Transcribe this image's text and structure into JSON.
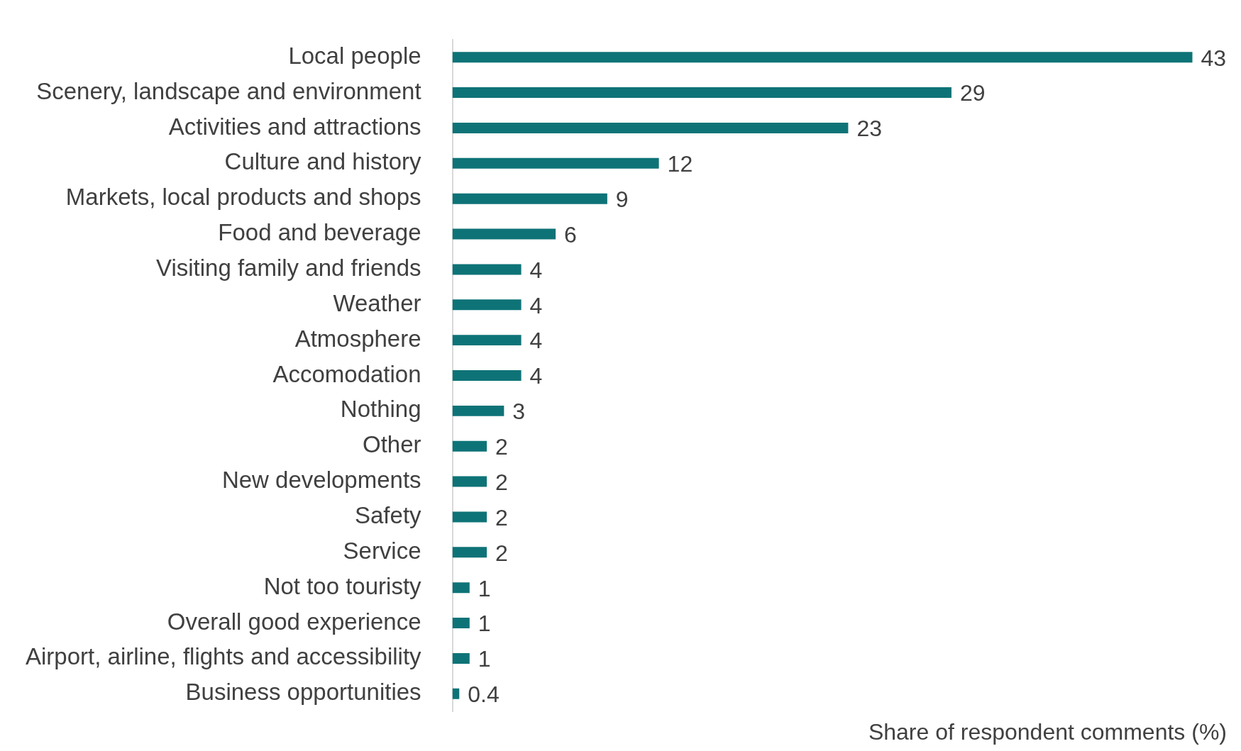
{
  "chart_data": {
    "type": "bar",
    "orientation": "horizontal",
    "xlabel": "Share of respondent comments (%)",
    "categories": [
      "Local people",
      "Scenery, landscape and environment",
      "Activities and attractions",
      "Culture and history",
      "Markets, local products and shops",
      "Food and beverage",
      "Visiting family and friends",
      "Weather",
      "Atmosphere",
      "Accomodation",
      "Nothing",
      "Other",
      "New developments",
      "Safety",
      "Service",
      "Not too touristy",
      "Overall good experience",
      "Airport, airline, flights and accessibility",
      "Business opportunities"
    ],
    "values": [
      43,
      29,
      23,
      12,
      9,
      6,
      4,
      4,
      4,
      4,
      3,
      2,
      2,
      2,
      2,
      1,
      1,
      1,
      0.4
    ],
    "color": "#0e7377",
    "data_labels": true,
    "grid": false,
    "legend": false
  }
}
